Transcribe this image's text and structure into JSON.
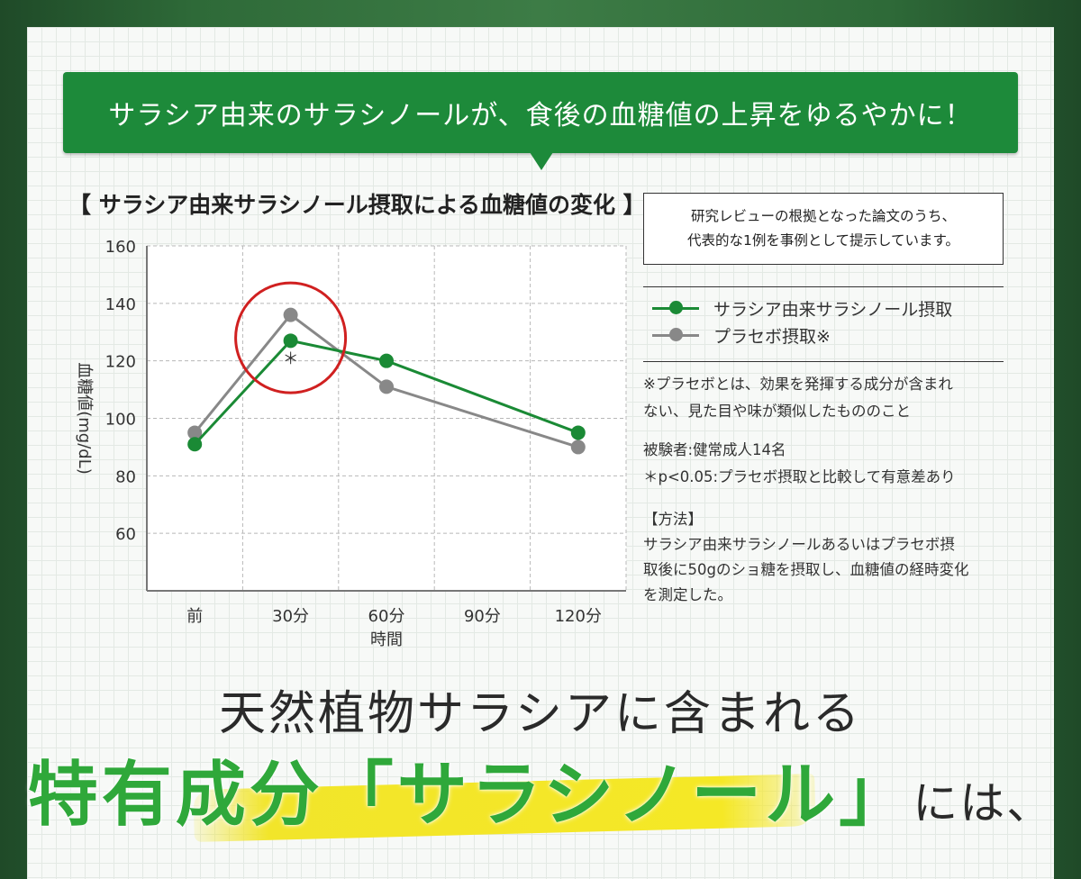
{
  "banner": {
    "text": "サラシア由来のサラシノールが、食後の血糖値の上昇をゆるやかに！"
  },
  "chart_title": "【 サラシア由来サラシノール摂取による血糖値の変化 】",
  "note_box": {
    "line1": "研究レビューの根拠となった論文のうち、",
    "line2": "代表的な1例を事例として提示しています。"
  },
  "legend": {
    "items": [
      {
        "label": "サラシア由来サラシノール摂取",
        "color": "#1a8a35"
      },
      {
        "label": "プラセボ摂取※",
        "color": "#888888"
      }
    ]
  },
  "notes": {
    "placebo_line1": "※プラセボとは、効果を発揮する成分が含まれ",
    "placebo_line2": "ない、見た目や味が類似したもののこと",
    "subjects_line1": "被験者:健常成人14名",
    "subjects_line2": "＊p<0.05:プラセボ摂取と比較して有意差あり",
    "method_title": "【方法】",
    "method_line1": "サラシア由来サラシノールあるいはプラセボ摂",
    "method_line2": "取後に50gのショ糖を摂取し、血糖値の経時変化",
    "method_line3": "を測定した。"
  },
  "headline": {
    "line1": "天然植物サラシアに含まれる",
    "line2_green": "特有成分「サラシノール」",
    "line2_dark": "には、"
  },
  "chart_data": {
    "type": "line",
    "categories": [
      "前",
      "30分",
      "60分",
      "90分",
      "120分"
    ],
    "xlabel": "時間",
    "ylabel": "血糖値(mg/dL)",
    "ylim": [
      40,
      160
    ],
    "yticks": [
      60,
      80,
      100,
      120,
      140,
      160
    ],
    "grid": true,
    "series": [
      {
        "name": "サラシア由来サラシノール摂取",
        "color": "#1a8a35",
        "values": [
          91,
          127,
          120,
          null,
          95
        ]
      },
      {
        "name": "プラセボ摂取※",
        "color": "#888888",
        "values": [
          95,
          136,
          111,
          null,
          90
        ]
      }
    ],
    "annotations": [
      {
        "category": "30分",
        "text": "＊"
      }
    ],
    "highlight": {
      "category": "30分",
      "color": "#d02020"
    }
  }
}
